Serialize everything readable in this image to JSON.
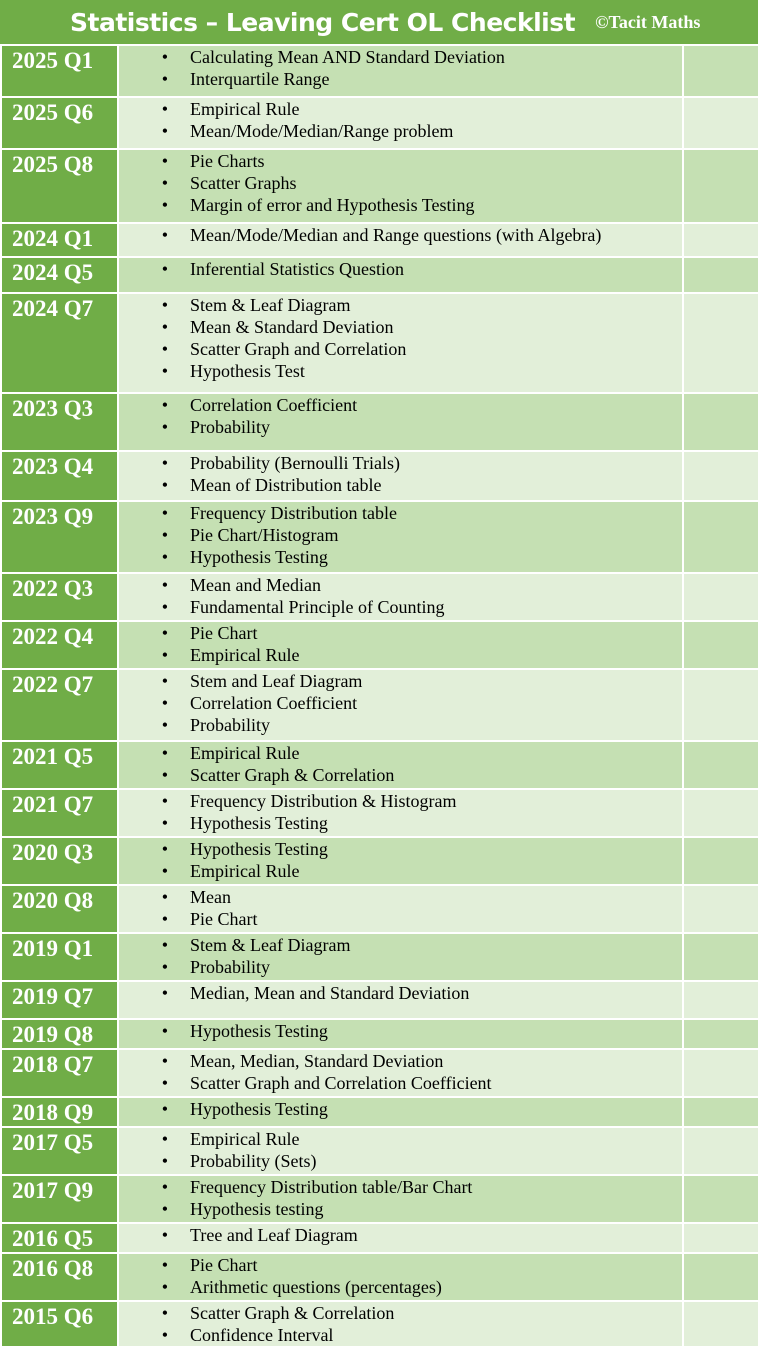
{
  "header": {
    "title": "Statistics – Leaving Cert OL Checklist",
    "credit": "©Tacit Maths"
  },
  "bullet_glyph": "•",
  "rows": [
    {
      "label": "2025 Q1",
      "topics": [
        "Calculating Mean AND Standard Deviation",
        "Interquartile Range"
      ]
    },
    {
      "label": "2025 Q6",
      "topics": [
        "Empirical Rule",
        "Mean/Mode/Median/Range problem"
      ]
    },
    {
      "label": "2025 Q8",
      "topics": [
        "Pie Charts",
        "Scatter Graphs",
        "Margin of error and Hypothesis Testing"
      ]
    },
    {
      "label": "2024 Q1",
      "topics": [
        "Mean/Mode/Median and Range questions (with Algebra)"
      ]
    },
    {
      "label": "2024 Q5",
      "topics": [
        "Inferential Statistics Question"
      ]
    },
    {
      "label": "2024 Q7",
      "topics": [
        "Stem & Leaf Diagram",
        "Mean & Standard Deviation",
        "Scatter Graph and Correlation",
        "Hypothesis Test"
      ]
    },
    {
      "label": "2023 Q3",
      "topics": [
        "Correlation Coefficient",
        "Probability"
      ]
    },
    {
      "label": "2023 Q4",
      "topics": [
        "Probability (Bernoulli Trials)",
        "Mean of Distribution table"
      ]
    },
    {
      "label": "2023 Q9",
      "topics": [
        "Frequency Distribution table",
        "Pie Chart/Histogram",
        "Hypothesis Testing"
      ]
    },
    {
      "label": "2022 Q3",
      "topics": [
        "Mean and Median",
        "Fundamental Principle of Counting"
      ]
    },
    {
      "label": "2022 Q4",
      "topics": [
        "Pie Chart",
        "Empirical Rule"
      ]
    },
    {
      "label": "2022 Q7",
      "topics": [
        "Stem and Leaf Diagram",
        "Correlation Coefficient",
        "Probability"
      ]
    },
    {
      "label": "2021 Q5",
      "topics": [
        "Empirical Rule",
        "Scatter Graph & Correlation"
      ]
    },
    {
      "label": "2021 Q7",
      "topics": [
        "Frequency Distribution & Histogram",
        "Hypothesis Testing"
      ]
    },
    {
      "label": "2020 Q3",
      "topics": [
        "Hypothesis Testing",
        "Empirical Rule"
      ]
    },
    {
      "label": "2020 Q8",
      "topics": [
        "Mean",
        "Pie Chart"
      ]
    },
    {
      "label": "2019 Q1",
      "topics": [
        "Stem & Leaf Diagram",
        "Probability"
      ]
    },
    {
      "label": "2019 Q7",
      "topics": [
        "Median, Mean and Standard Deviation"
      ]
    },
    {
      "label": "2019 Q8",
      "topics": [
        "Hypothesis Testing"
      ]
    },
    {
      "label": "2018 Q7",
      "topics": [
        "Mean, Median, Standard Deviation",
        "Scatter Graph and Correlation Coefficient"
      ]
    },
    {
      "label": "2018 Q9",
      "topics": [
        "Hypothesis Testing"
      ]
    },
    {
      "label": "2017 Q5",
      "topics": [
        "Empirical Rule",
        "Probability (Sets)"
      ]
    },
    {
      "label": "2017 Q9",
      "topics": [
        "Frequency Distribution table/Bar Chart",
        "Hypothesis testing"
      ]
    },
    {
      "label": "2016 Q5",
      "topics": [
        "Tree and Leaf Diagram"
      ]
    },
    {
      "label": "2016 Q8",
      "topics": [
        "Pie Chart",
        "Arithmetic questions (percentages)"
      ]
    },
    {
      "label": "2015 Q6",
      "topics": [
        "Scatter Graph & Correlation",
        "Confidence Interval"
      ]
    }
  ],
  "colors": {
    "header_green": "#70ad47",
    "row_light": "#e2efd9",
    "row_shade": "#c5e0b3",
    "label_text": "#ffffff"
  }
}
